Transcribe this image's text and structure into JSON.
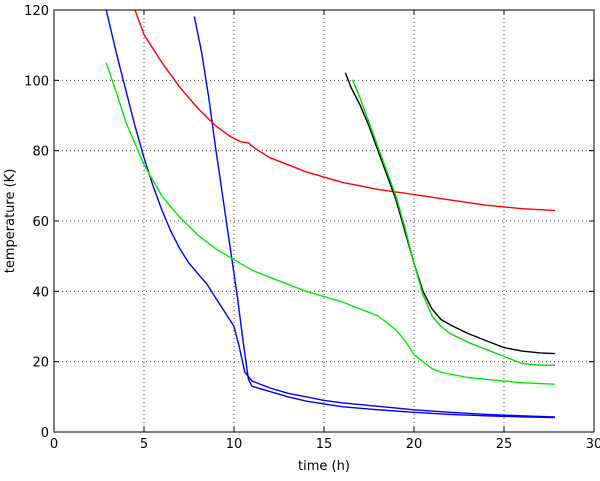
{
  "chart_data": {
    "type": "line",
    "title": "",
    "xlabel": "time (h)",
    "ylabel": "temperature (K)",
    "xlim": [
      0,
      30
    ],
    "ylim": [
      0,
      120
    ],
    "xticks": [
      0,
      5,
      10,
      15,
      20,
      25,
      30
    ],
    "yticks": [
      0,
      20,
      40,
      60,
      80,
      100,
      120
    ],
    "grid": true,
    "series": [
      {
        "color": "#0000ff",
        "x": [
          2.9,
          3.5,
          4.0,
          4.5,
          5.0,
          5.5,
          6.0,
          6.5,
          7.0,
          7.5,
          8.0,
          8.5,
          9.0,
          9.5,
          10.0,
          10.3,
          10.6,
          11.0,
          12.0,
          13.0,
          14.0,
          15.0,
          16.0,
          18.0,
          20.0,
          22.0,
          24.0,
          26.0,
          27.8
        ],
        "y": [
          120,
          107,
          97,
          87,
          78,
          70,
          63,
          57,
          52,
          48,
          45,
          42,
          38,
          34,
          30,
          24,
          17,
          14.5,
          12.5,
          11,
          10,
          9,
          8.3,
          7.3,
          6.3,
          5.6,
          5,
          4.6,
          4.3
        ]
      },
      {
        "color": "#0000ff",
        "x": [
          7.8,
          8.2,
          8.6,
          9.0,
          9.4,
          9.8,
          10.2,
          10.5,
          10.8,
          11.0,
          12.0,
          13.0,
          14.0,
          15.0,
          16.0,
          18.0,
          20.0,
          22.0,
          24.0,
          26.0,
          27.8
        ],
        "y": [
          118,
          108,
          95,
          80,
          66,
          52,
          38,
          26,
          15,
          13,
          11.5,
          10,
          8.8,
          8,
          7.2,
          6.3,
          5.6,
          5,
          4.6,
          4.3,
          4.1
        ]
      },
      {
        "color": "#00ee00",
        "x": [
          2.9,
          3.5,
          4.0,
          5.0,
          6.0,
          7.0,
          8.0,
          9.0,
          10.0,
          11.0,
          12.0,
          13.0,
          14.0,
          15.0,
          16.0,
          17.0,
          18.0,
          19.0,
          19.5,
          20.0,
          20.5,
          21.0,
          21.5,
          22.0,
          23.0,
          24.0,
          25.0,
          26.0,
          27.0,
          27.8
        ],
        "y": [
          105,
          96,
          88,
          76,
          67,
          61,
          56,
          52,
          49,
          46,
          44,
          42,
          40,
          38.5,
          37,
          35,
          33,
          29,
          26,
          22,
          20,
          18,
          17,
          16.5,
          15.5,
          15,
          14.5,
          14,
          13.8,
          13.6
        ]
      },
      {
        "color": "#ff0000",
        "x": [
          4.5,
          5.0,
          6.0,
          7.0,
          8.0,
          9.0,
          9.8,
          10.4,
          10.8,
          11.2,
          12.0,
          14.0,
          16.0,
          18.0,
          20.0,
          22.0,
          24.0,
          26.0,
          27.8
        ],
        "y": [
          120,
          113,
          105,
          98,
          92,
          87,
          84,
          82.5,
          82.2,
          80.5,
          78,
          74,
          71,
          69,
          67.5,
          66,
          64.5,
          63.5,
          63
        ]
      },
      {
        "color": "#000000",
        "x": [
          16.2,
          16.5,
          17.0,
          17.5,
          18.0,
          18.5,
          19.0,
          19.5,
          20.0,
          20.5,
          21.0,
          21.5,
          22.0,
          23.0,
          24.0,
          25.0,
          26.0,
          27.0,
          27.8
        ],
        "y": [
          102,
          98,
          93,
          87,
          80,
          73,
          66,
          57,
          48,
          40,
          35,
          32,
          30.5,
          28,
          26,
          24,
          23,
          22.5,
          22.3
        ]
      },
      {
        "color": "#00dd00",
        "x": [
          16.6,
          17.0,
          17.5,
          18.0,
          18.5,
          19.0,
          19.5,
          20.0,
          20.5,
          21.0,
          21.5,
          22.0,
          23.0,
          24.0,
          25.0,
          26.0,
          27.0,
          27.8
        ],
        "y": [
          100,
          95,
          88,
          81,
          74,
          67,
          58,
          48,
          39,
          33,
          30,
          28,
          25.5,
          23.5,
          21.5,
          19.5,
          19,
          19
        ]
      }
    ]
  }
}
